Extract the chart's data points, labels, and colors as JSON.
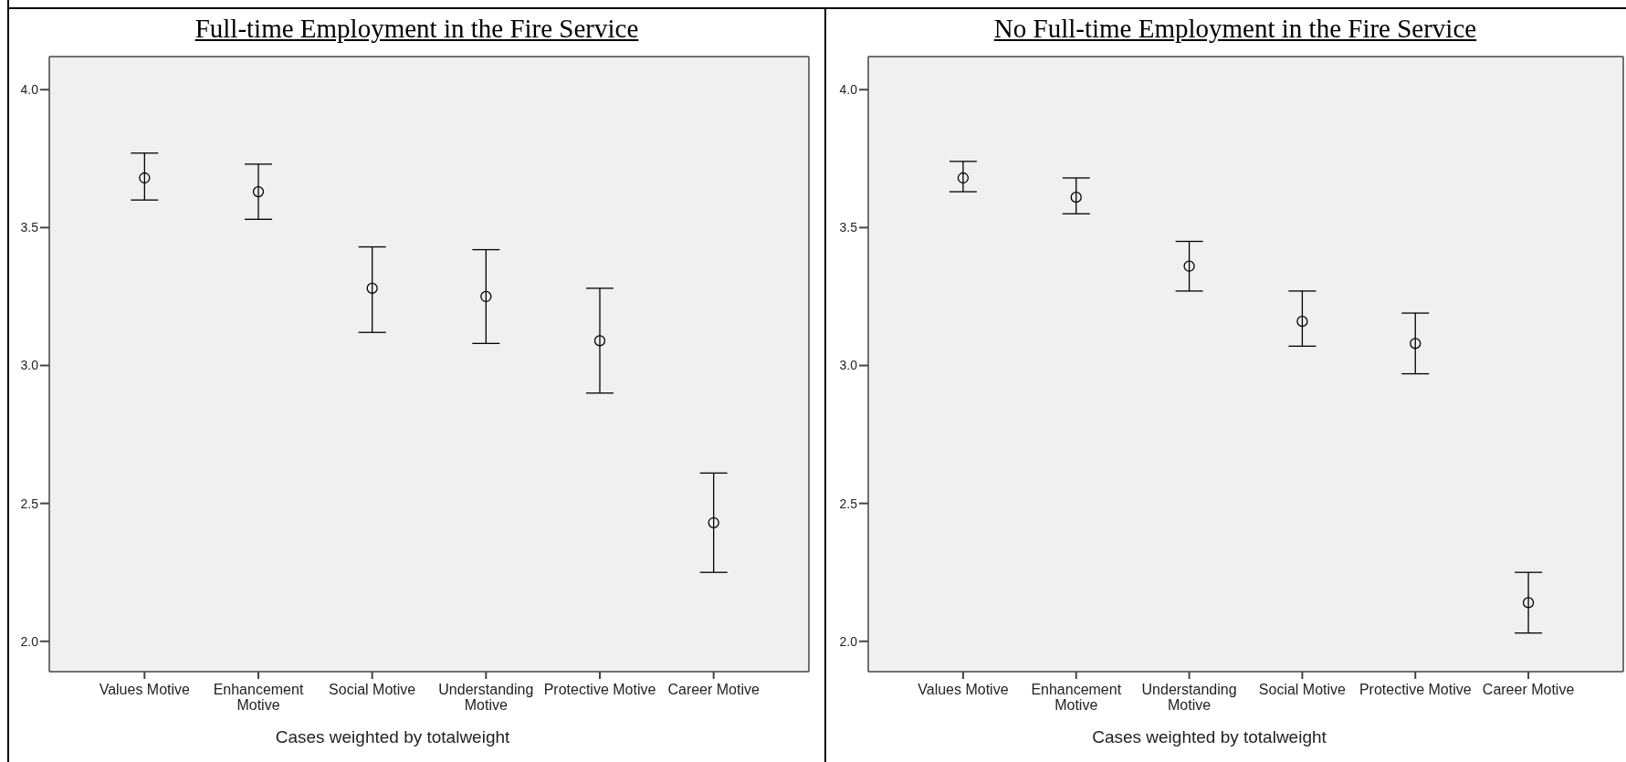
{
  "chart_data": [
    {
      "type": "scatter",
      "title": "Full-time Employment in the Fire Service",
      "categories": [
        "Values Motive",
        "Enhancement Motive",
        "Social Motive",
        "Understanding Motive",
        "Protective Motive",
        "Career Motive"
      ],
      "values": [
        3.68,
        3.63,
        3.28,
        3.25,
        3.09,
        2.43
      ],
      "errors": [
        [
          3.6,
          3.77
        ],
        [
          3.53,
          3.73
        ],
        [
          3.12,
          3.43
        ],
        [
          3.08,
          3.42
        ],
        [
          2.9,
          3.28
        ],
        [
          2.25,
          2.61
        ]
      ],
      "color": "#000000",
      "marker": "circle",
      "ylim": [
        1.89,
        4.12
      ],
      "yticks": [
        {
          "value": 2,
          "label": "2.0"
        },
        {
          "value": 2.5,
          "label": "2.5"
        },
        {
          "value": 3,
          "label": "3.0"
        },
        {
          "value": 3.5,
          "label": "3.5"
        },
        {
          "value": 4,
          "label": "4.0"
        }
      ],
      "annotations": [
        "Cases weighted by totalweight"
      ]
    },
    {
      "type": "scatter",
      "title": "No Full-time Employment in the Fire Service",
      "categories": [
        "Values Motive",
        "Enhancement Motive",
        "Understanding Motive",
        "Social Motive",
        "Protective Motive",
        "Career Motive"
      ],
      "values": [
        3.68,
        3.61,
        3.36,
        3.16,
        3.08,
        2.14
      ],
      "errors": [
        [
          3.63,
          3.74
        ],
        [
          3.55,
          3.68
        ],
        [
          3.27,
          3.45
        ],
        [
          3.07,
          3.27
        ],
        [
          2.97,
          3.19
        ],
        [
          2.03,
          2.25
        ]
      ],
      "color": "#000000",
      "marker": "circle",
      "ylim": [
        1.89,
        4.12
      ],
      "yticks": [
        {
          "value": 2,
          "label": "2.0"
        },
        {
          "value": 2.5,
          "label": "2.5"
        },
        {
          "value": 3,
          "label": "3.0"
        },
        {
          "value": 3.5,
          "label": "3.5"
        },
        {
          "value": 4,
          "label": "4.0"
        }
      ],
      "annotations": [
        "Cases weighted by totalweight"
      ]
    }
  ]
}
